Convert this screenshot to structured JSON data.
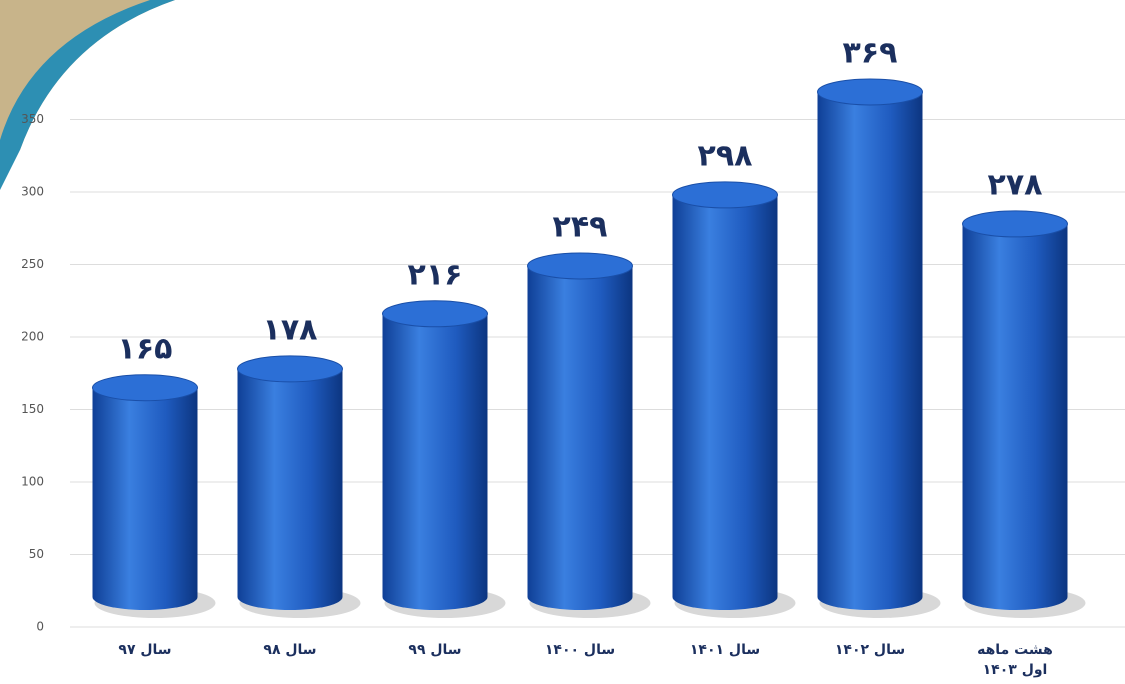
{
  "chart_data": {
    "type": "bar3d",
    "categories": [
      "سال ۹۷",
      "سال ۹۸",
      "سال ۹۹",
      "سال ۱۴۰۰",
      "سال ۱۴۰۱",
      "سال ۱۴۰۲",
      "هشت ماهه اول ۱۴۰۳"
    ],
    "values": [
      165,
      178,
      216,
      249,
      298,
      369,
      278
    ],
    "value_labels": [
      "۱۶۵",
      "۱۷۸",
      "۲۱۶",
      "۲۴۹",
      "۲۹۸",
      "۳۶۹",
      "۲۷۸"
    ],
    "color": "#1f5bbf",
    "ylim": [
      0,
      400
    ],
    "yticks": [
      0,
      50,
      100,
      150,
      200,
      250,
      300,
      350
    ],
    "grid": true
  }
}
